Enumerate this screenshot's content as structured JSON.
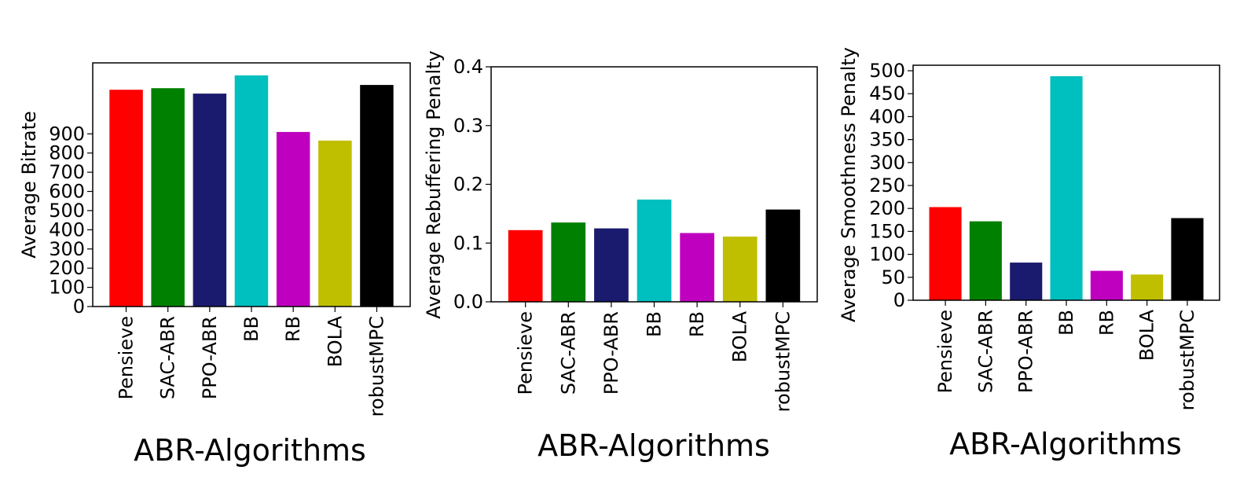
{
  "chart_data": [
    {
      "type": "bar",
      "xlabel": "ABR-Algorithms",
      "ylabel": "Average Bitrate",
      "categories": [
        "Pensieve",
        "SAC-ABR",
        "PPO-ABR",
        "BB",
        "RB",
        "BOLA",
        "robustMPC"
      ],
      "values": [
        1130,
        1138,
        1110,
        1205,
        910,
        865,
        1155
      ],
      "colors": [
        "#ff0000",
        "#008000",
        "#1a1a6e",
        "#00bfbf",
        "#bf00bf",
        "#bfbf00",
        "#000000"
      ],
      "ylim": [
        0,
        1270
      ],
      "yticks": [
        0,
        100,
        200,
        300,
        400,
        500,
        600,
        700,
        800,
        900
      ],
      "ytick_labels": [
        "0",
        "100",
        "200",
        "300",
        "400",
        "500",
        "600",
        "700",
        "800",
        "900"
      ],
      "grid": false
    },
    {
      "type": "bar",
      "xlabel": "ABR-Algorithms",
      "ylabel": "Average Rebuffering Penalty",
      "categories": [
        "Pensieve",
        "SAC-ABR",
        "PPO-ABR",
        "BB",
        "RB",
        "BOLA",
        "robustMPC"
      ],
      "values": [
        0.122,
        0.135,
        0.125,
        0.174,
        0.117,
        0.111,
        0.157
      ],
      "colors": [
        "#ff0000",
        "#008000",
        "#1a1a6e",
        "#00bfbf",
        "#bf00bf",
        "#bfbf00",
        "#000000"
      ],
      "ylim": [
        0,
        0.4
      ],
      "yticks": [
        0,
        0.1,
        0.2,
        0.3,
        0.4
      ],
      "ytick_labels": [
        "0.0",
        "0.1",
        "0.2",
        "0.3",
        "0.4"
      ],
      "grid": false
    },
    {
      "type": "bar",
      "xlabel": "ABR-Algorithms",
      "ylabel": "Average Smoothness Penalty",
      "categories": [
        "Pensieve",
        "SAC-ABR",
        "PPO-ABR",
        "BB",
        "RB",
        "BOLA",
        "robustMPC"
      ],
      "values": [
        203,
        172,
        82,
        488,
        64,
        56,
        179
      ],
      "colors": [
        "#ff0000",
        "#008000",
        "#1a1a6e",
        "#00bfbf",
        "#bf00bf",
        "#bfbf00",
        "#000000"
      ],
      "ylim": [
        0,
        512
      ],
      "yticks": [
        0,
        50,
        100,
        150,
        200,
        250,
        300,
        350,
        400,
        450,
        500
      ],
      "ytick_labels": [
        "0",
        "50",
        "100",
        "150",
        "200",
        "250",
        "300",
        "350",
        "400",
        "450",
        "500"
      ],
      "grid": false
    }
  ]
}
